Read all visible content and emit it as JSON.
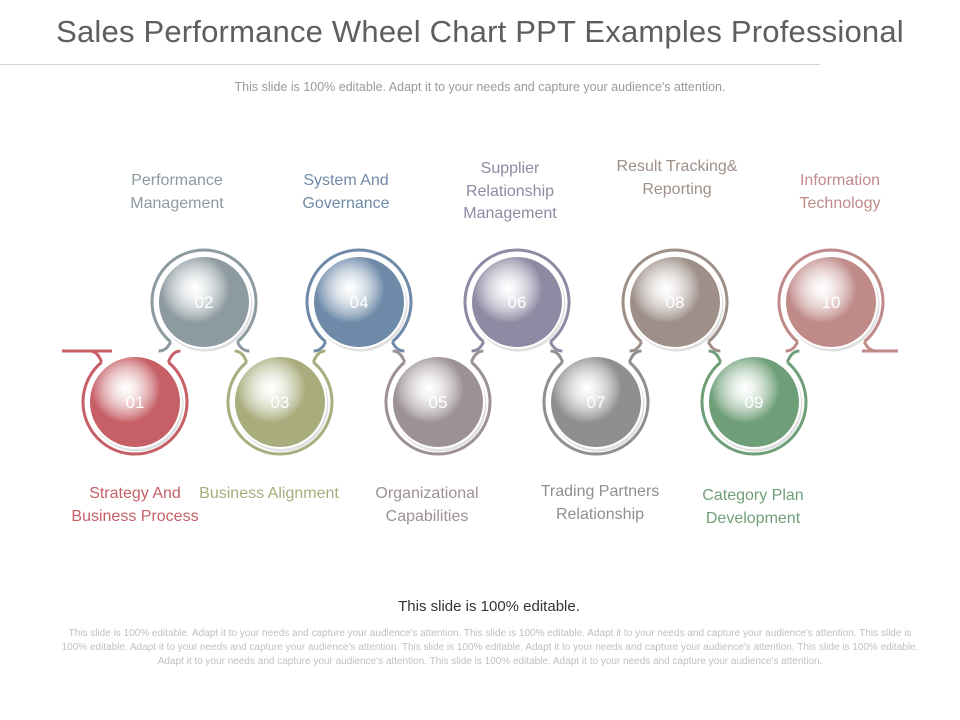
{
  "title": "Sales Performance Wheel Chart PPT Examples Professional",
  "subtitle": "This slide is 100% editable. Adapt it to your needs and capture your audience's attention.",
  "steps": [
    {
      "number": "01",
      "label": "Strategy And Business Process",
      "color": "#c65f66",
      "ring": "#c65f66"
    },
    {
      "number": "02",
      "label": "Performance Management",
      "color": "#8d9aa0",
      "ring": "#8d9aa0"
    },
    {
      "number": "03",
      "label": "Business Alignment",
      "color": "#a9ad7d",
      "ring": "#a9ad7d"
    },
    {
      "number": "04",
      "label": "System And Governance",
      "color": "#6e8aa8",
      "ring": "#6e8aa8"
    },
    {
      "number": "05",
      "label": "Organizational Capabilities",
      "color": "#9c9197",
      "ring": "#9c9197"
    },
    {
      "number": "06",
      "label": "Supplier Relationship Management",
      "color": "#8e8aa3",
      "ring": "#8e8aa3"
    },
    {
      "number": "07",
      "label": "Trading Partners Relationship",
      "color": "#8d8f91",
      "ring": "#8d8f91"
    },
    {
      "number": "08",
      "label": "Result Tracking& Reporting",
      "color": "#9e9089",
      "ring": "#9e9089"
    },
    {
      "number": "09",
      "label": "Category Plan Development",
      "color": "#6f9f78",
      "ring": "#6f9f78"
    },
    {
      "number": "10",
      "label": "Information Technology",
      "color": "#bf8a88",
      "ring": "#bf8a88"
    }
  ],
  "editable_note": "This slide is 100% editable.",
  "footer_text": "This slide is 100% editable. Adapt it to your needs and capture your audience's attention. This slide is 100% editable. Adapt it to your needs and capture your audience's attention. This slide is 100% editable. Adapt it to your needs and capture your audience's attention. This slide is 100% editable. Adapt it to your needs and capture your audience's attention. This slide is 100% editable. Adapt it to your needs and capture your audience's attention. This slide is 100% editable. Adapt it to your needs and capture your audience's attention."
}
